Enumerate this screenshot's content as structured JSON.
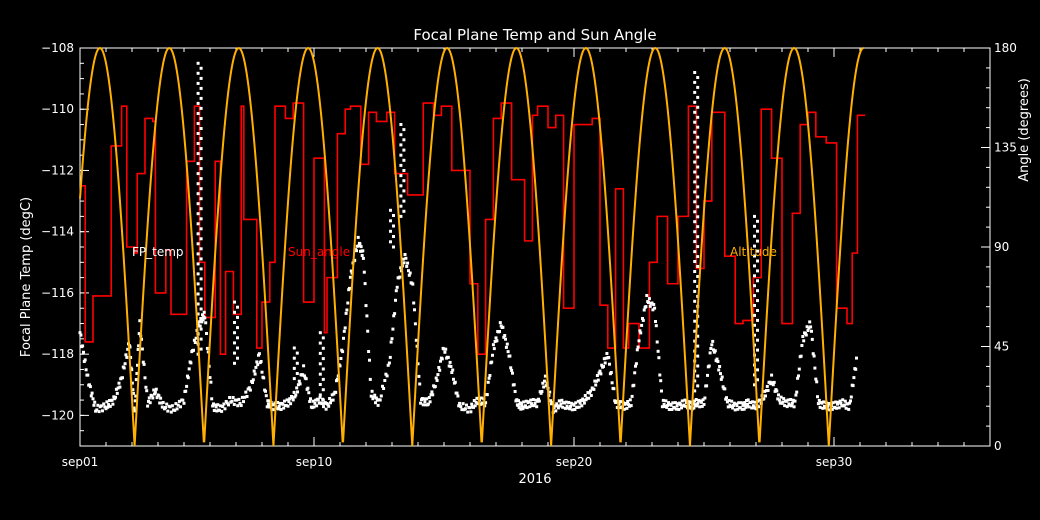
{
  "chart_data": {
    "type": "line",
    "title": "Focal Plane Temp and Sun Angle",
    "xlabel": "2016",
    "ylabel_left": "Focal Plane Temp (degC)",
    "ylabel_right": "Angle (degrees)",
    "x_unit": "days",
    "xlim": [
      1,
      36
    ],
    "ylim_left": [
      -121,
      -108
    ],
    "ylim_right": [
      0,
      180
    ],
    "x_ticks": [
      {
        "value": 1,
        "label": "sep01"
      },
      {
        "value": 10,
        "label": "sep10"
      },
      {
        "value": 20,
        "label": "sep20"
      },
      {
        "value": 30,
        "label": "sep30"
      }
    ],
    "y_ticks_left": [
      -120,
      -118,
      -116,
      -114,
      -112,
      -110,
      -108
    ],
    "y_ticks_left_labels": [
      "−120",
      "−118",
      "−116",
      "−114",
      "−112",
      "−110",
      "−108"
    ],
    "y_ticks_right": [
      0,
      45,
      90,
      135,
      180
    ],
    "y_ticks_right_labels": [
      "0",
      "45",
      "90",
      "135",
      "180"
    ],
    "grid": false,
    "series": [
      {
        "name": "FP_temp",
        "axis": "left",
        "style": "markers",
        "color": "#ffffff",
        "x": [
          1.0,
          1.3,
          1.6,
          2.0,
          2.3,
          2.6,
          2.9,
          3.1,
          3.3,
          3.6,
          3.9,
          4.2,
          4.6,
          5.0,
          5.3,
          5.6,
          5.8,
          6.1,
          6.4,
          6.8,
          7.2,
          7.6,
          7.9,
          8.2,
          8.4,
          8.7,
          9.0,
          9.3,
          9.6,
          9.9,
          10.2,
          10.5,
          10.8,
          11.1,
          11.4,
          11.7,
          11.9,
          12.2,
          12.5,
          12.9,
          13.2,
          13.5,
          13.8,
          14.1,
          14.4,
          14.7,
          15.0,
          15.3,
          15.6,
          16.0,
          16.3,
          16.6,
          16.9,
          17.2,
          17.5,
          17.8,
          18.0,
          18.3,
          18.6,
          18.9,
          19.2,
          19.5,
          19.8,
          20.1,
          20.4,
          20.7,
          21.0,
          21.3,
          21.6,
          21.9,
          22.2,
          22.5,
          22.8,
          23.1,
          23.4,
          23.7,
          24.0,
          24.3,
          24.5,
          24.7,
          25.0,
          25.3,
          25.6,
          25.9,
          26.2,
          26.5,
          26.7,
          27.0,
          27.3,
          27.6,
          27.9,
          28.2,
          28.5,
          28.8,
          29.1,
          29.4,
          29.7,
          30.0,
          30.3,
          30.6,
          30.9
        ],
        "y": [
          -117.3,
          -118.8,
          -119.8,
          -119.7,
          -119.5,
          -118.8,
          -117.6,
          -119.9,
          -117.0,
          -119.6,
          -119.2,
          -119.7,
          -119.8,
          -119.5,
          -118.0,
          -117.0,
          -116.7,
          -119.7,
          -119.8,
          -119.5,
          -119.6,
          -119.0,
          -118.0,
          -119.6,
          -119.7,
          -119.7,
          -119.6,
          -119.3,
          -118.5,
          -119.7,
          -119.5,
          -119.7,
          -119.3,
          -117.8,
          -115.5,
          -114.3,
          -114.8,
          -119.3,
          -119.6,
          -118.3,
          -115.7,
          -114.8,
          -115.8,
          -119.5,
          -119.6,
          -118.9,
          -117.8,
          -118.5,
          -119.7,
          -119.8,
          -119.5,
          -119.6,
          -117.8,
          -117.0,
          -118.0,
          -119.6,
          -119.7,
          -119.6,
          -119.6,
          -118.8,
          -119.8,
          -119.6,
          -119.7,
          -119.7,
          -119.5,
          -119.2,
          -118.6,
          -118.0,
          -119.6,
          -119.7,
          -119.6,
          -117.5,
          -116.2,
          -116.5,
          -119.6,
          -119.7,
          -119.7,
          -119.6,
          -119.7,
          -119.6,
          -119.6,
          -117.6,
          -118.5,
          -119.6,
          -119.7,
          -119.7,
          -119.6,
          -119.7,
          -119.4,
          -118.8,
          -119.5,
          -119.6,
          -119.6,
          -117.5,
          -117.0,
          -119.6,
          -119.7,
          -119.7,
          -119.6,
          -119.7,
          -118.0
        ],
        "spikes": [
          {
            "x": 5.6,
            "y_min": -118,
            "y_max": -108.5
          },
          {
            "x": 7.0,
            "y_min": -118.3,
            "y_max": -116.3
          },
          {
            "x": 9.3,
            "y_min": -118.8,
            "y_max": -117.8
          },
          {
            "x": 10.3,
            "y_min": -119.5,
            "y_max": -117.3
          },
          {
            "x": 13.0,
            "y_min": -114.5,
            "y_max": -113.3
          },
          {
            "x": 13.4,
            "y_min": -113.5,
            "y_max": -110.5
          },
          {
            "x": 24.7,
            "y_min": -119.2,
            "y_max": -108.8
          },
          {
            "x": 27.0,
            "y_min": -119.0,
            "y_max": -113.5
          }
        ]
      },
      {
        "name": "Sun_angle",
        "axis": "left",
        "style": "step",
        "color": "#ff0000",
        "x": [
          1.0,
          1.2,
          1.5,
          2.2,
          2.6,
          2.8,
          3.1,
          3.2,
          3.5,
          3.8,
          3.9,
          4.3,
          4.5,
          5.1,
          5.4,
          5.6,
          5.8,
          6.2,
          6.4,
          6.6,
          6.9,
          7.2,
          7.3,
          7.8,
          8.0,
          8.3,
          8.5,
          8.9,
          9.2,
          9.6,
          10.0,
          10.4,
          10.5,
          10.9,
          11.2,
          11.4,
          11.8,
          12.1,
          12.4,
          12.8,
          13.1,
          13.6,
          14.2,
          14.6,
          14.9,
          15.3,
          16.0,
          16.3,
          16.6,
          16.9,
          17.2,
          17.6,
          18.1,
          18.4,
          18.6,
          19.0,
          19.3,
          19.6,
          20.0,
          20.3,
          20.7,
          21.0,
          21.3,
          21.6,
          21.9,
          22.1,
          22.5,
          22.9,
          23.2,
          23.6,
          24.0,
          24.4,
          24.7,
          25.0,
          25.3,
          25.8,
          26.2,
          26.5,
          26.9,
          27.2,
          27.6,
          28.0,
          28.4,
          28.7,
          29.0,
          29.3,
          29.7,
          30.1,
          30.5,
          30.7,
          30.9
        ],
        "y": [
          -112.5,
          -117.6,
          -116.1,
          -111.2,
          -109.9,
          -114.5,
          -114.7,
          -112.1,
          -110.3,
          -110.4,
          -116.0,
          -114.6,
          -116.7,
          -111.7,
          -109.9,
          -115.0,
          -116.8,
          -111.7,
          -118.0,
          -115.3,
          -116.7,
          -109.9,
          -113.6,
          -117.8,
          -116.3,
          -115.0,
          -109.9,
          -110.3,
          -109.8,
          -116.3,
          -111.6,
          -117.3,
          -115.5,
          -110.8,
          -110.0,
          -109.9,
          -111.8,
          -110.1,
          -110.4,
          -110.1,
          -112.1,
          -112.8,
          -109.8,
          -110.2,
          -109.9,
          -112.0,
          -115.7,
          -118.0,
          -113.6,
          -110.3,
          -109.8,
          -112.3,
          -114.3,
          -110.2,
          -109.9,
          -110.6,
          -110.2,
          -116.5,
          -110.5,
          -110.5,
          -110.3,
          -116.4,
          -117.8,
          -112.6,
          -117.8,
          -117.0,
          -117.8,
          -115.0,
          -113.5,
          -115.7,
          -113.5,
          -109.9,
          -115.2,
          -113.0,
          -110.1,
          -114.8,
          -117.0,
          -116.9,
          -115.5,
          -110.0,
          -111.6,
          -117.0,
          -113.4,
          -110.5,
          -110.1,
          -110.9,
          -111.1,
          -116.5,
          -117.0,
          -114.7,
          -110.2
        ]
      },
      {
        "name": "Altitude",
        "axis": "right",
        "style": "line",
        "color": "#ffb000",
        "x_period_days": 2.67,
        "x_minima": [
          3.1,
          5.77,
          8.44,
          11.11,
          13.78,
          16.45,
          19.12,
          21.79,
          24.46,
          27.13,
          29.8
        ]
      }
    ],
    "legend": [
      {
        "name": "FP_temp",
        "color": "#ffffff"
      },
      {
        "name": "Sun_angle",
        "color": "#ff0000"
      },
      {
        "name": "Altitude",
        "color": "#ffb000"
      }
    ],
    "legend_placement": "middle-row inside plot"
  }
}
